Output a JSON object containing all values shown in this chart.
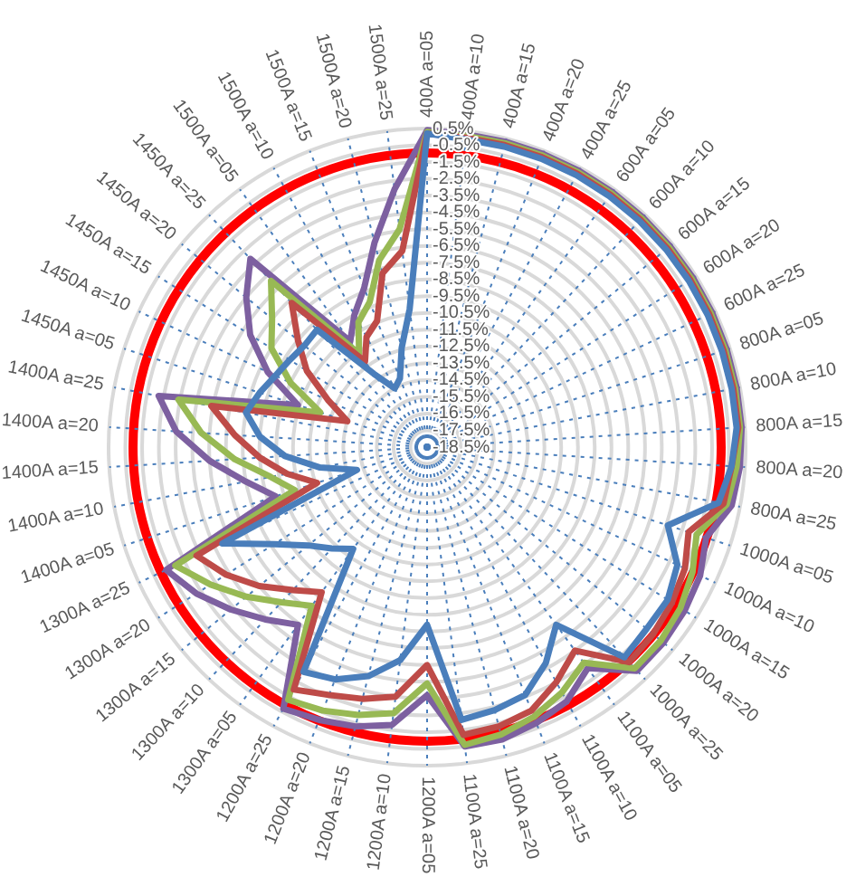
{
  "chart_data": {
    "type": "radar",
    "categories": [
      "400A a=05",
      "400A a=10",
      "400A a=15",
      "400A a=20",
      "400A a=25",
      "600A a=05",
      "600A a=10",
      "600A a=15",
      "600A a=20",
      "600A a=25",
      "800A a=05",
      "800A a=10",
      "800A a=15",
      "800A a=20",
      "800A a=25",
      "1000A a=05",
      "1000A a=10",
      "1000A a=15",
      "1000A a=20",
      "1000A a=25",
      "1100A a=05",
      "1100A a=10",
      "1100A a=15",
      "1100A a=20",
      "1100A a=25",
      "1200A a=05",
      "1200A a=10",
      "1200A a=15",
      "1200A a=20",
      "1200A a=25",
      "1300A a=05",
      "1300A a=10",
      "1300A a=15",
      "1300A a=20",
      "1300A a=25",
      "1400A a=05",
      "1400A a=10",
      "1400A a=15",
      "1400A a=20",
      "1400A a=25",
      "1450A a=05",
      "1450A a=10",
      "1450A a=15",
      "1450A a=20",
      "1450A a=25",
      "1500A a=05",
      "1500A a=10",
      "1500A a=15",
      "1500A a=20",
      "1500A a=25"
    ],
    "series": [
      {
        "color": "#4a7ebb",
        "values": [
          0.2,
          0,
          0,
          0,
          0,
          0,
          0,
          0,
          0,
          0,
          0,
          0,
          0,
          -0.3,
          -0.8,
          -3.4,
          -2.0,
          -1.5,
          -1.5,
          -1.3,
          -5.4,
          -3.8,
          -2.6,
          -2.3,
          -2.1,
          -7.9,
          -5.7,
          -4.4,
          -3.6,
          -3.2,
          -11.0,
          -10.2,
          -9.3,
          -7.7,
          -5.0,
          -14.1,
          -12.0,
          -10.0,
          -8.5,
          -7.5,
          -8.0,
          -8.5,
          -8.8,
          -9.0,
          -8.9,
          -13.1,
          -14.5,
          -14.1,
          -12.4,
          -10.2
        ]
      },
      {
        "color": "#be4b48",
        "values": [
          0.2,
          0.1,
          0.1,
          0.1,
          0.1,
          0.1,
          0.1,
          0.1,
          0.1,
          0.1,
          0.1,
          0.1,
          0.1,
          -0.3,
          -0.5,
          -2.1,
          -1.5,
          -1.2,
          -1.0,
          -0.9,
          -3.5,
          -2.5,
          -1.6,
          -1.3,
          -1.2,
          -5.5,
          -3.5,
          -3.0,
          -2.6,
          -2.0,
          -7.8,
          -6.8,
          -5.5,
          -4.3,
          -3.3,
          -11.6,
          -10.0,
          -8.5,
          -7.0,
          -5.4,
          -13.5,
          -12.0,
          -10.0,
          -8.5,
          -6.7,
          -12.2,
          -11.0,
          -10.4,
          -7.8,
          -6.7
        ]
      },
      {
        "color": "#98b954",
        "values": [
          0.3,
          0.2,
          0.2,
          0.2,
          0.2,
          0.2,
          0.2,
          0.2,
          0.2,
          0.2,
          0.2,
          0.2,
          0.2,
          0,
          -0.3,
          -1.6,
          -1.0,
          -0.6,
          -0.4,
          -0.4,
          -2.6,
          -1.8,
          -1.2,
          -0.8,
          -0.6,
          -4.4,
          -2.5,
          -2.0,
          -1.6,
          -1.3,
          -6.8,
          -5.8,
          -4.5,
          -3.2,
          -1.9,
          -10.2,
          -9.0,
          -7.0,
          -5.0,
          -3.4,
          -11.8,
          -9.5,
          -7.5,
          -6.5,
          -4.9,
          -11.6,
          -10.0,
          -9.2,
          -7.0,
          -5.4
        ]
      },
      {
        "color": "#7d60a0",
        "values": [
          0.4,
          0.3,
          0.3,
          0.3,
          0.3,
          0.3,
          0.3,
          0.3,
          0.3,
          0.3,
          0.3,
          0.3,
          0.3,
          0.2,
          0,
          -1.0,
          -0.5,
          -0.3,
          -0.2,
          -0.2,
          -2.2,
          -1.2,
          -0.8,
          -0.5,
          -0.5,
          -3.7,
          -1.8,
          -1.3,
          -1.0,
          -0.7,
          -5.4,
          -4.4,
          -3.3,
          -2.2,
          -1.3,
          -9.0,
          -7.5,
          -5.5,
          -3.5,
          -2.2,
          -10.4,
          -8.0,
          -6.0,
          -4.5,
          -3.1,
          -10.7,
          -9.5,
          -8.3,
          -5.9,
          -3.0
        ]
      }
    ],
    "ylim": [
      -18.5,
      0.5
    ],
    "yticks": [
      {
        "value": 0.5,
        "label": "0.5%"
      },
      {
        "value": -0.5,
        "label": "-0.5%"
      },
      {
        "value": -1.5,
        "label": "-1.5%"
      },
      {
        "value": -2.5,
        "label": "-2.5%"
      },
      {
        "value": -3.5,
        "label": "-3.5%"
      },
      {
        "value": -4.5,
        "label": "-4.5%"
      },
      {
        "value": -5.5,
        "label": "-5.5%"
      },
      {
        "value": -6.5,
        "label": "-6.5%"
      },
      {
        "value": -7.5,
        "label": "-7.5%"
      },
      {
        "value": -8.5,
        "label": "-8.5%"
      },
      {
        "value": -9.5,
        "label": "-9.5%"
      },
      {
        "value": -10.5,
        "label": "-10.5%"
      },
      {
        "value": -11.5,
        "label": "-11.5%"
      },
      {
        "value": -12.5,
        "label": "-12.5%"
      },
      {
        "value": -13.5,
        "label": "-13.5%"
      },
      {
        "value": -14.5,
        "label": "-14.5%"
      },
      {
        "value": -15.5,
        "label": "-15.5%"
      },
      {
        "value": -16.5,
        "label": "-16.5%"
      },
      {
        "value": -17.5,
        "label": "-17.5%"
      },
      {
        "value": -18.5,
        "label": "-18.5%"
      }
    ],
    "grid": true,
    "marker": "none"
  }
}
